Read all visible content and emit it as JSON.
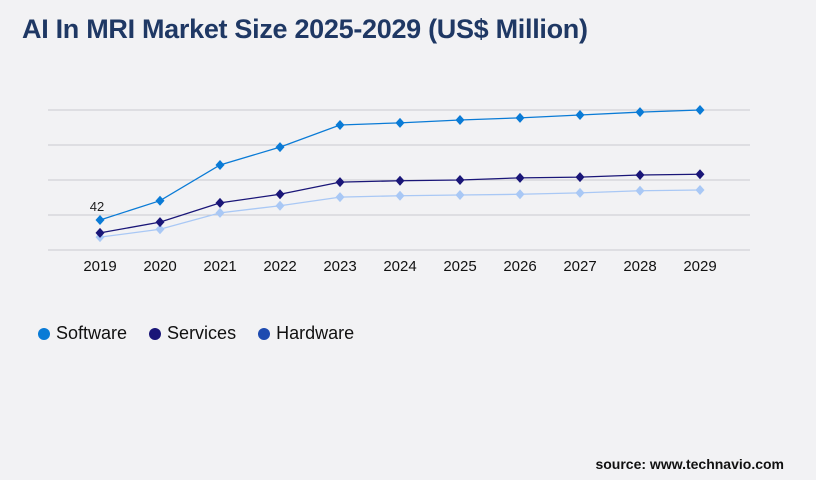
{
  "chart_data": {
    "type": "line",
    "title": "AI In MRI Market Size 2025-2029 (US$ Million)",
    "xlabel": "",
    "ylabel": "",
    "categories": [
      "2019",
      "2020",
      "2021",
      "2022",
      "2023",
      "2024",
      "2025",
      "2026",
      "2027",
      "2028",
      "2029"
    ],
    "ylim": [
      0,
      196
    ],
    "grid": true,
    "legend": "bottom-left",
    "series": [
      {
        "name": "Software",
        "color": "#0a7bd6",
        "line_color": "#0a7bd6",
        "values": [
          42,
          69,
          119,
          144,
          175,
          178,
          182,
          185,
          189,
          193,
          196
        ]
      },
      {
        "name": "Services",
        "color": "#1a1678",
        "line_color": "#1a1678",
        "values": [
          24,
          39,
          66,
          78,
          95,
          97,
          98,
          101,
          102,
          105,
          106
        ]
      },
      {
        "name": "Hardware",
        "color": "#1e4bb0",
        "line_color": "#a9c8f5",
        "values": [
          18,
          29,
          52,
          62,
          74,
          76,
          77,
          78,
          80,
          83,
          84
        ]
      }
    ],
    "annotations": [
      {
        "series": "Software",
        "category": "2019",
        "text": "42"
      }
    ]
  },
  "source": "source: www.technavio.com"
}
